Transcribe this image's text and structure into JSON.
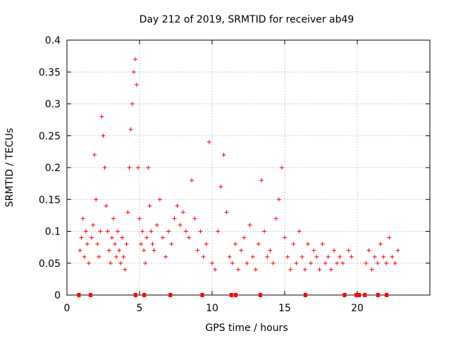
{
  "chart_data": {
    "type": "scatter",
    "title": "Day 212 of 2019, SRMTID for receiver ab49",
    "xlabel": "GPS time / hours",
    "ylabel": "SRMTID / TECUs",
    "xlim": [
      0,
      25
    ],
    "ylim": [
      0,
      0.4
    ],
    "x_ticks": [
      0,
      5,
      10,
      15,
      20
    ],
    "x_tick_labels": [
      "0",
      "5",
      "10",
      "15",
      "20"
    ],
    "y_ticks": [
      0,
      0.05,
      0.1,
      0.15,
      0.2,
      0.25,
      0.3,
      0.35,
      0.4
    ],
    "y_tick_labels": [
      "0",
      "0.05",
      "0.1",
      "0.15",
      "0.2",
      "0.25",
      "0.3",
      "0.35",
      "0.4"
    ],
    "grid": true,
    "marker": "+",
    "color": "#ff0000",
    "series": [
      {
        "name": "SRMTID",
        "points": [
          [
            0.9,
            0.07
          ],
          [
            1.0,
            0.09
          ],
          [
            1.1,
            0.12
          ],
          [
            1.2,
            0.06
          ],
          [
            1.3,
            0.1
          ],
          [
            1.4,
            0.08
          ],
          [
            1.5,
            0.05
          ],
          [
            1.7,
            0.09
          ],
          [
            1.8,
            0.11
          ],
          [
            1.9,
            0.22
          ],
          [
            2.0,
            0.15
          ],
          [
            2.1,
            0.08
          ],
          [
            2.2,
            0.06
          ],
          [
            2.3,
            0.1
          ],
          [
            2.4,
            0.28
          ],
          [
            2.5,
            0.25
          ],
          [
            2.6,
            0.2
          ],
          [
            2.7,
            0.14
          ],
          [
            2.8,
            0.1
          ],
          [
            2.9,
            0.07
          ],
          [
            3.0,
            0.05
          ],
          [
            3.1,
            0.09
          ],
          [
            3.2,
            0.12
          ],
          [
            3.3,
            0.08
          ],
          [
            3.4,
            0.06
          ],
          [
            3.5,
            0.1
          ],
          [
            3.6,
            0.07
          ],
          [
            3.7,
            0.05
          ],
          [
            3.8,
            0.09
          ],
          [
            3.9,
            0.06
          ],
          [
            4.0,
            0.04
          ],
          [
            4.1,
            0.08
          ],
          [
            4.2,
            0.13
          ],
          [
            4.3,
            0.2
          ],
          [
            4.4,
            0.26
          ],
          [
            4.5,
            0.3
          ],
          [
            4.6,
            0.35
          ],
          [
            4.7,
            0.37
          ],
          [
            4.8,
            0.33
          ],
          [
            4.9,
            0.2
          ],
          [
            5.0,
            0.12
          ],
          [
            5.1,
            0.08
          ],
          [
            5.2,
            0.1
          ],
          [
            5.3,
            0.07
          ],
          [
            5.4,
            0.05
          ],
          [
            5.5,
            0.09
          ],
          [
            5.6,
            0.2
          ],
          [
            5.7,
            0.14
          ],
          [
            5.8,
            0.1
          ],
          [
            5.9,
            0.08
          ],
          [
            6.0,
            0.07
          ],
          [
            6.2,
            0.11
          ],
          [
            6.4,
            0.15
          ],
          [
            6.6,
            0.09
          ],
          [
            6.8,
            0.06
          ],
          [
            7.0,
            0.1
          ],
          [
            7.2,
            0.08
          ],
          [
            7.4,
            0.12
          ],
          [
            7.6,
            0.14
          ],
          [
            7.8,
            0.11
          ],
          [
            8.0,
            0.13
          ],
          [
            8.2,
            0.1
          ],
          [
            8.4,
            0.09
          ],
          [
            8.6,
            0.18
          ],
          [
            8.8,
            0.12
          ],
          [
            9.0,
            0.07
          ],
          [
            9.2,
            0.1
          ],
          [
            9.4,
            0.06
          ],
          [
            9.6,
            0.08
          ],
          [
            9.8,
            0.24
          ],
          [
            10.0,
            0.05
          ],
          [
            10.2,
            0.04
          ],
          [
            10.4,
            0.1
          ],
          [
            10.6,
            0.17
          ],
          [
            10.8,
            0.22
          ],
          [
            11.0,
            0.13
          ],
          [
            11.2,
            0.06
          ],
          [
            11.4,
            0.05
          ],
          [
            11.6,
            0.08
          ],
          [
            11.8,
            0.04
          ],
          [
            12.0,
            0.07
          ],
          [
            12.2,
            0.09
          ],
          [
            12.4,
            0.05
          ],
          [
            12.6,
            0.11
          ],
          [
            12.8,
            0.06
          ],
          [
            13.0,
            0.04
          ],
          [
            13.2,
            0.08
          ],
          [
            13.4,
            0.18
          ],
          [
            13.6,
            0.1
          ],
          [
            13.8,
            0.06
          ],
          [
            14.0,
            0.07
          ],
          [
            14.2,
            0.05
          ],
          [
            14.4,
            0.12
          ],
          [
            14.6,
            0.15
          ],
          [
            14.8,
            0.2
          ],
          [
            15.0,
            0.09
          ],
          [
            15.2,
            0.06
          ],
          [
            15.4,
            0.04
          ],
          [
            15.6,
            0.08
          ],
          [
            15.8,
            0.05
          ],
          [
            16.0,
            0.1
          ],
          [
            16.2,
            0.06
          ],
          [
            16.4,
            0.04
          ],
          [
            16.6,
            0.08
          ],
          [
            16.8,
            0.05
          ],
          [
            17.0,
            0.07
          ],
          [
            17.2,
            0.06
          ],
          [
            17.4,
            0.04
          ],
          [
            17.6,
            0.08
          ],
          [
            17.8,
            0.05
          ],
          [
            18.0,
            0.06
          ],
          [
            18.2,
            0.04
          ],
          [
            18.4,
            0.07
          ],
          [
            18.6,
            0.05
          ],
          [
            18.8,
            0.06
          ],
          [
            19.0,
            0.05
          ],
          [
            19.4,
            0.07
          ],
          [
            19.6,
            0.06
          ],
          [
            20.6,
            0.05
          ],
          [
            20.8,
            0.07
          ],
          [
            21.0,
            0.04
          ],
          [
            21.2,
            0.06
          ],
          [
            21.4,
            0.05
          ],
          [
            21.6,
            0.08
          ],
          [
            21.8,
            0.06
          ],
          [
            22.0,
            0.05
          ],
          [
            22.2,
            0.09
          ],
          [
            22.4,
            0.06
          ],
          [
            22.6,
            0.05
          ],
          [
            22.8,
            0.07
          ]
        ]
      }
    ],
    "zero_markers_x": [
      0.8,
      1.6,
      4.7,
      5.3,
      7.1,
      9.3,
      11.3,
      11.6,
      13.3,
      16.4,
      19.1,
      19.9,
      20.1,
      20.5,
      21.4,
      22.0
    ]
  }
}
